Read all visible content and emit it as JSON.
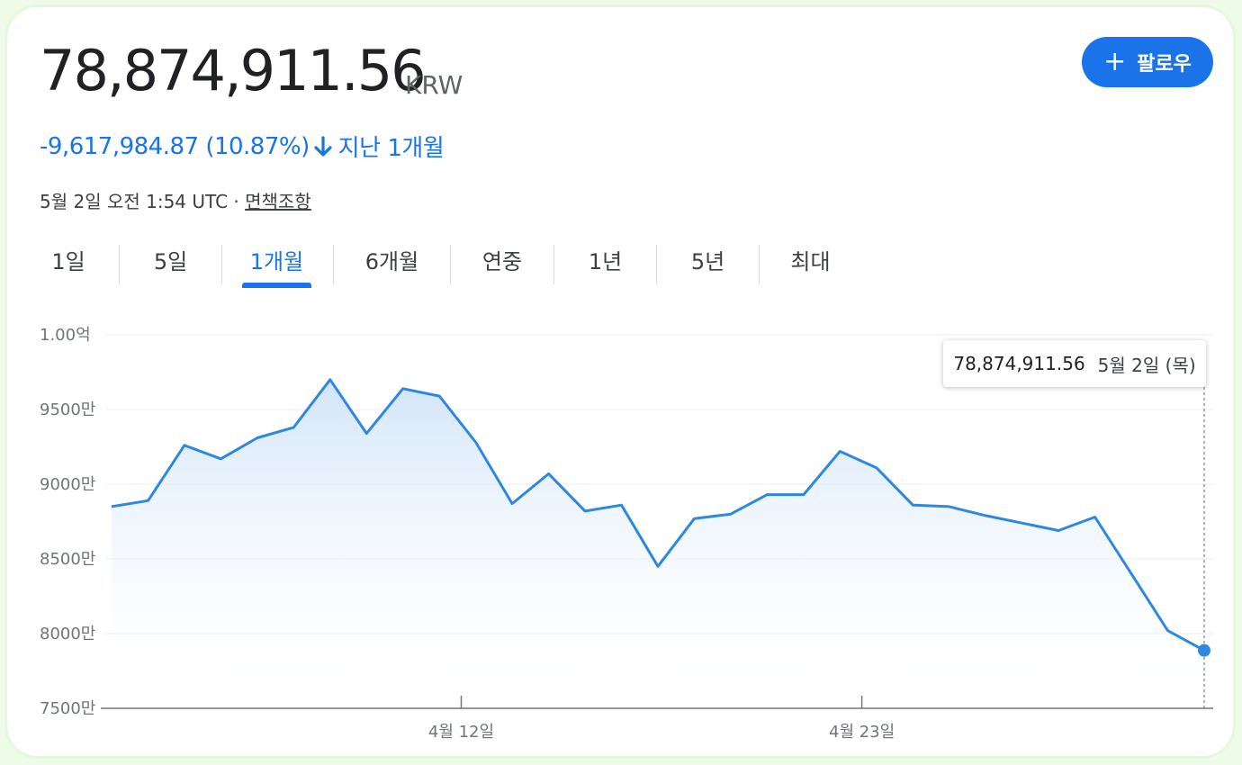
{
  "header": {
    "price": "78,874,911.56",
    "currency": "KRW",
    "change": "-9,617,984.87 (10.87%)",
    "change_period": "지난 1개월",
    "timestamp": "5월 2일 오전 1:54 UTC · ",
    "disclaimer": "면책조항"
  },
  "follow_button": {
    "label": "팔로우",
    "icon": "plus-icon"
  },
  "tabs": [
    {
      "label": "1일",
      "active": false
    },
    {
      "label": "5일",
      "active": false
    },
    {
      "label": "1개월",
      "active": true
    },
    {
      "label": "6개월",
      "active": false
    },
    {
      "label": "연중",
      "active": false
    },
    {
      "label": "1년",
      "active": false
    },
    {
      "label": "5년",
      "active": false
    },
    {
      "label": "최대",
      "active": false
    }
  ],
  "tooltip": {
    "value": "78,874,911.56",
    "date": "5월 2일 (목)"
  },
  "colors": {
    "accent": "#1a73e8",
    "line": "#2e88df",
    "negative": "#1a73e8"
  },
  "chart_data": {
    "type": "area",
    "y_tick_labels": [
      "1.00억",
      "9500만",
      "9000만",
      "8500만",
      "8000만",
      "7500만"
    ],
    "y_tick_values": [
      100000000,
      95000000,
      90000000,
      85000000,
      80000000,
      75000000
    ],
    "ylim": [
      75000000,
      100000000
    ],
    "x_tick_labels": [
      "4월 12일",
      "4월 23일"
    ],
    "grid": true,
    "series": [
      {
        "values": [
          88500000,
          88900000,
          92600000,
          91700000,
          93100000,
          93800000,
          97000000,
          93400000,
          96400000,
          95900000,
          92800000,
          88700000,
          90700000,
          88200000,
          88600000,
          84500000,
          87700000,
          88000000,
          89300000,
          89300000,
          92200000,
          91100000,
          88600000,
          88500000,
          87900000,
          87400000,
          86900000,
          87800000,
          84000000,
          80200000,
          78874911.56
        ]
      }
    ],
    "x_tick_indices": [
      9.6,
      20.6
    ]
  }
}
